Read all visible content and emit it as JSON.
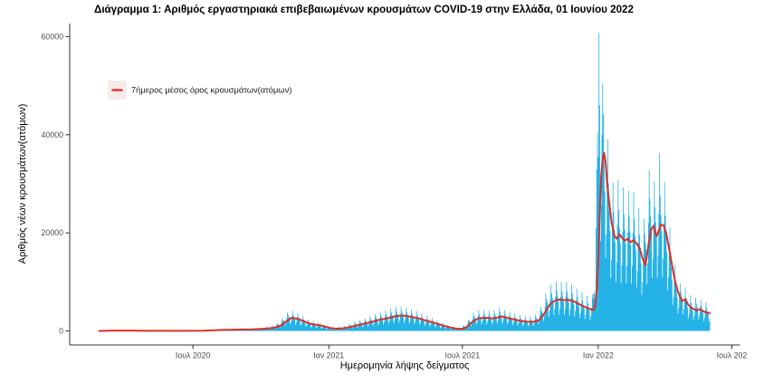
{
  "title": "Διάγραμμα 1: Αριθμός εργαστηριακά επιβεβαιωμένων κρουσμάτων COVID-19 στην Ελλάδα, 01 Ιουνίου 2022",
  "colors": {
    "bar": "#25B2E6",
    "line": "#DC2F27",
    "axis": "#333333",
    "tick_label": "#4D4D4D",
    "legend_key_bg": "#F6EAEA"
  },
  "chart_data": {
    "type": "bar",
    "title": "Διάγραμμα 1: Αριθμός εργαστηριακά επιβεβαιωμένων κρουσμάτων COVID-19 στην Ελλάδα, 01 Ιουνίου 2022",
    "xlabel": "Ημερομηνία λήψης δείγματος",
    "ylabel": "Αριθμός νέων κρουσμάτων(ατόμων)",
    "grid": false,
    "ylim": [
      0,
      63500
    ],
    "x_span_days": 827,
    "y_ticks": [
      {
        "value": 0,
        "label": "0"
      },
      {
        "value": 20000,
        "label": "20000"
      },
      {
        "value": 40000,
        "label": "40000"
      },
      {
        "value": 60000,
        "label": "60000"
      }
    ],
    "x_ticks": [
      {
        "day": 127,
        "label": "Ιουλ 2020"
      },
      {
        "day": 311,
        "label": "Ιαν 2021"
      },
      {
        "day": 492,
        "label": "Ιουλ 2021"
      },
      {
        "day": 676,
        "label": "Ιαν 2022"
      },
      {
        "day": 857,
        "label": "Ιουλ 202"
      }
    ],
    "legend": {
      "label": "7ήμερος μέσος όρος κρουσμάτων(ατόμων)",
      "position": "inside-top-left"
    },
    "series": {
      "avg_line": {
        "name": "7-day moving average of cases",
        "points": [
          [
            0,
            10
          ],
          [
            19,
            60
          ],
          [
            40,
            70
          ],
          [
            66,
            25
          ],
          [
            111,
            15
          ],
          [
            141,
            35
          ],
          [
            167,
            200
          ],
          [
            189,
            270
          ],
          [
            208,
            330
          ],
          [
            223,
            430
          ],
          [
            236,
            620
          ],
          [
            246,
            1100
          ],
          [
            254,
            2000
          ],
          [
            261,
            2700
          ],
          [
            269,
            2450
          ],
          [
            277,
            2000
          ],
          [
            287,
            1400
          ],
          [
            299,
            1150
          ],
          [
            313,
            600
          ],
          [
            322,
            450
          ],
          [
            332,
            550
          ],
          [
            344,
            950
          ],
          [
            355,
            1350
          ],
          [
            366,
            1700
          ],
          [
            379,
            2250
          ],
          [
            391,
            2600
          ],
          [
            403,
            3050
          ],
          [
            412,
            3150
          ],
          [
            422,
            2900
          ],
          [
            433,
            2550
          ],
          [
            444,
            2050
          ],
          [
            455,
            1600
          ],
          [
            466,
            1100
          ],
          [
            476,
            700
          ],
          [
            486,
            420
          ],
          [
            493,
            460
          ],
          [
            499,
            900
          ],
          [
            506,
            1900
          ],
          [
            513,
            2550
          ],
          [
            523,
            2700
          ],
          [
            534,
            2550
          ],
          [
            546,
            2950
          ],
          [
            556,
            2550
          ],
          [
            568,
            2150
          ],
          [
            578,
            1900
          ],
          [
            588,
            1850
          ],
          [
            595,
            2100
          ],
          [
            602,
            3300
          ],
          [
            606,
            4300
          ],
          [
            610,
            5300
          ],
          [
            615,
            6000
          ],
          [
            622,
            6400
          ],
          [
            630,
            6300
          ],
          [
            637,
            6300
          ],
          [
            645,
            5900
          ],
          [
            652,
            5300
          ],
          [
            659,
            4800
          ],
          [
            666,
            4400
          ],
          [
            670,
            4300
          ],
          [
            672,
            5200
          ],
          [
            674,
            8500
          ],
          [
            676,
            14000
          ],
          [
            678,
            24000
          ],
          [
            680,
            31500
          ],
          [
            682,
            35200
          ],
          [
            684,
            36300
          ],
          [
            686,
            34500
          ],
          [
            688,
            30000
          ],
          [
            691,
            26000
          ],
          [
            694,
            22200
          ],
          [
            698,
            19400
          ],
          [
            701,
            18800
          ],
          [
            705,
            19700
          ],
          [
            708,
            19000
          ],
          [
            712,
            18400
          ],
          [
            716,
            18800
          ],
          [
            720,
            18100
          ],
          [
            724,
            18500
          ],
          [
            728,
            17800
          ],
          [
            732,
            16900
          ],
          [
            736,
            14800
          ],
          [
            740,
            13400
          ],
          [
            744,
            17500
          ],
          [
            748,
            20800
          ],
          [
            751,
            21400
          ],
          [
            755,
            19300
          ],
          [
            758,
            20500
          ],
          [
            761,
            21700
          ],
          [
            765,
            21400
          ],
          [
            768,
            20000
          ],
          [
            772,
            16800
          ],
          [
            776,
            13400
          ],
          [
            780,
            10200
          ],
          [
            784,
            8000
          ],
          [
            787,
            6900
          ],
          [
            790,
            6100
          ],
          [
            794,
            6500
          ],
          [
            798,
            5300
          ],
          [
            802,
            4800
          ],
          [
            806,
            4400
          ],
          [
            810,
            4200
          ],
          [
            814,
            4500
          ],
          [
            818,
            4000
          ],
          [
            822,
            3800
          ],
          [
            827,
            3600
          ]
        ]
      },
      "daily_bars": {
        "name": "Daily confirmed cases",
        "weekly_pattern": [
          0.52,
          0.72,
          1.1,
          1.58,
          1.28,
          1.1,
          0.95
        ],
        "avg_lag_days": 3,
        "spike_overrides": {
          "673": 21000,
          "674": 33000,
          "675": 40500,
          "677": 60700,
          "678": 46000,
          "682": 50500,
          "759": 36200
        },
        "max_daily_value": 60700
      }
    }
  }
}
